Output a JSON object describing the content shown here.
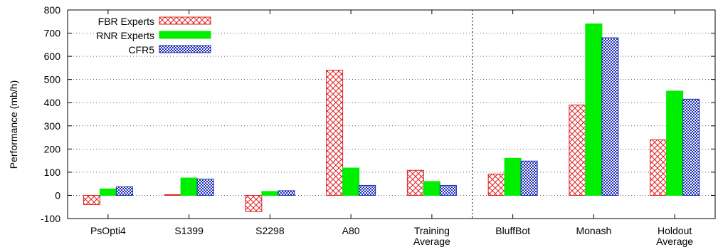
{
  "colors": {
    "fbr": "#dd2222",
    "rnr": "#00ee00",
    "cfr": "#1a2ab8",
    "axis": "#000000",
    "grid": "#000000"
  },
  "chart_data": {
    "type": "bar",
    "title": "",
    "xlabel": "",
    "ylabel": "Performance (mb/h)",
    "ylim": [
      -100,
      800
    ],
    "yticks": [
      -100,
      0,
      100,
      200,
      300,
      400,
      500,
      600,
      700,
      800
    ],
    "ytick_labels": [
      "-100",
      "0",
      "100",
      "200",
      "300",
      "400",
      "500",
      "600",
      "700",
      "800"
    ],
    "grid": true,
    "legend_position": "top-left",
    "separator_after_category": 5,
    "categories": [
      [
        "PsOpti4"
      ],
      [
        "S1399"
      ],
      [
        "S2298"
      ],
      [
        "A80"
      ],
      [
        "Training",
        "Average"
      ],
      [
        "BluffBot"
      ],
      [
        "Monash"
      ],
      [
        "Holdout",
        "Average"
      ]
    ],
    "series": [
      {
        "name": "FBR Experts",
        "pattern": "crosshatch",
        "values": [
          -40,
          3,
          -70,
          540,
          108,
          92,
          390,
          240
        ]
      },
      {
        "name": "RNR Experts",
        "pattern": "solid",
        "values": [
          28,
          75,
          17,
          118,
          60,
          160,
          740,
          450
        ]
      },
      {
        "name": "CFR5",
        "pattern": "dots",
        "values": [
          37,
          70,
          20,
          43,
          43,
          148,
          680,
          415
        ]
      }
    ]
  }
}
